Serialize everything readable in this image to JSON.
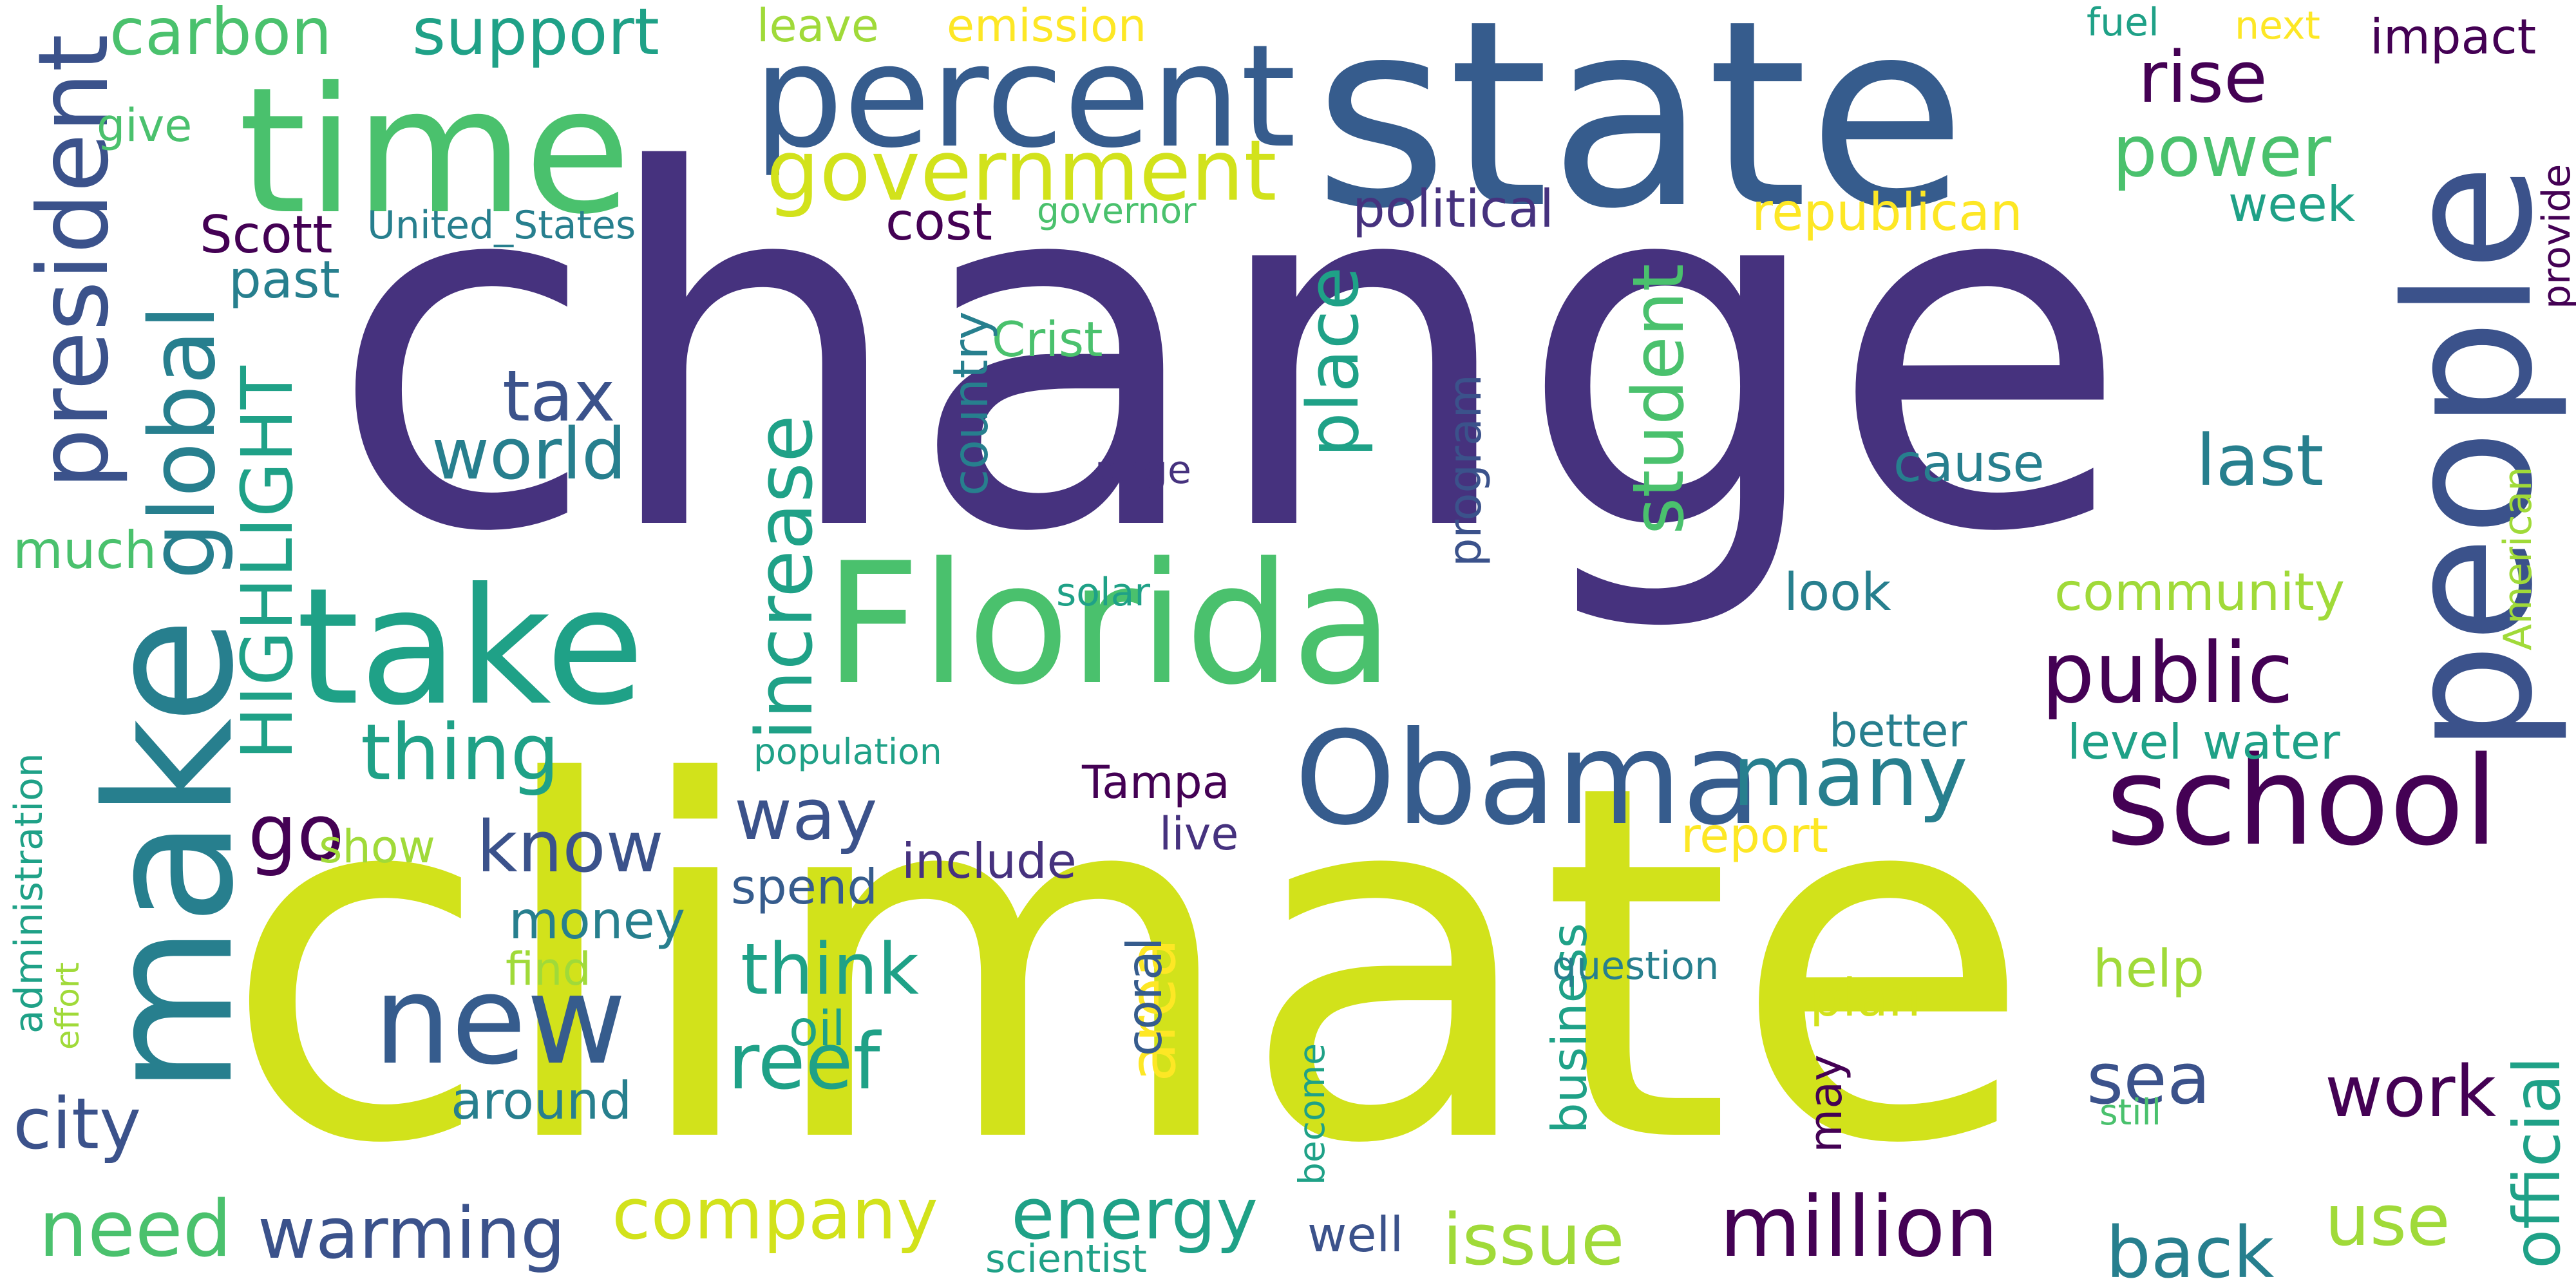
{
  "image": {
    "kind": "word-cloud"
  },
  "palette": {
    "deep_purple": "#46327e",
    "blue": "#365c8d",
    "teal_blue": "#277f8e",
    "teal_green": "#1fa187",
    "green": "#4ac16d",
    "yellow_green": "#a0da39",
    "lime": "#d2e21b",
    "yellow": "#fde725",
    "darkest_purple": "#440154"
  },
  "words": {
    "change": "change",
    "climate": "climate",
    "state": "state",
    "time": "time",
    "make": "make",
    "people": "people",
    "florida": "Florida",
    "take": "take",
    "percent": "percent",
    "obama": "Obama",
    "school": "school",
    "new": "new",
    "president": "president",
    "global": "global",
    "government": "government",
    "public": "public",
    "many": "many",
    "million": "million",
    "increase": "increase",
    "thing": "thing",
    "go": "go",
    "way": "way",
    "know": "know",
    "think": "think",
    "reef": "reef",
    "student": "student",
    "place": "place",
    "highlight": "HIGHLIGHT",
    "tax": "tax",
    "world": "world",
    "rise": "rise",
    "power": "power",
    "last": "last",
    "carbon": "carbon",
    "support": "support",
    "company": "company",
    "energy": "energy",
    "issue": "issue",
    "back": "back",
    "use": "use",
    "work": "work",
    "sea": "sea",
    "need": "need",
    "warming": "warming",
    "city": "city",
    "official": "official",
    "area": "area",
    "much": "much",
    "cost": "cost",
    "political": "political",
    "republican": "republican",
    "week": "week",
    "impact": "impact",
    "next": "next",
    "fuel": "fuel",
    "emission": "emission",
    "leave": "leave",
    "give": "give",
    "scott": "Scott",
    "united_states": "United_States",
    "governor": "governor",
    "past": "past",
    "crist": "Crist",
    "country": "country",
    "page": "page",
    "program": "program",
    "cause": "cause",
    "look": "look",
    "community": "community",
    "provide": "provide",
    "american": "American",
    "solar": "solar",
    "better": "better",
    "level": "level",
    "water": "water",
    "population": "population",
    "tampa": "Tampa",
    "report": "report",
    "live": "live",
    "include": "include",
    "spend": "spend",
    "show": "show",
    "money": "money",
    "find": "find",
    "coral": "coral",
    "oil": "oil",
    "business": "business",
    "question": "question",
    "become": "become",
    "may": "may",
    "help": "help",
    "plan": "plan",
    "still": "still",
    "around": "around",
    "well": "well",
    "scientist": "scientist",
    "administration": "administration",
    "effort": "effort"
  }
}
